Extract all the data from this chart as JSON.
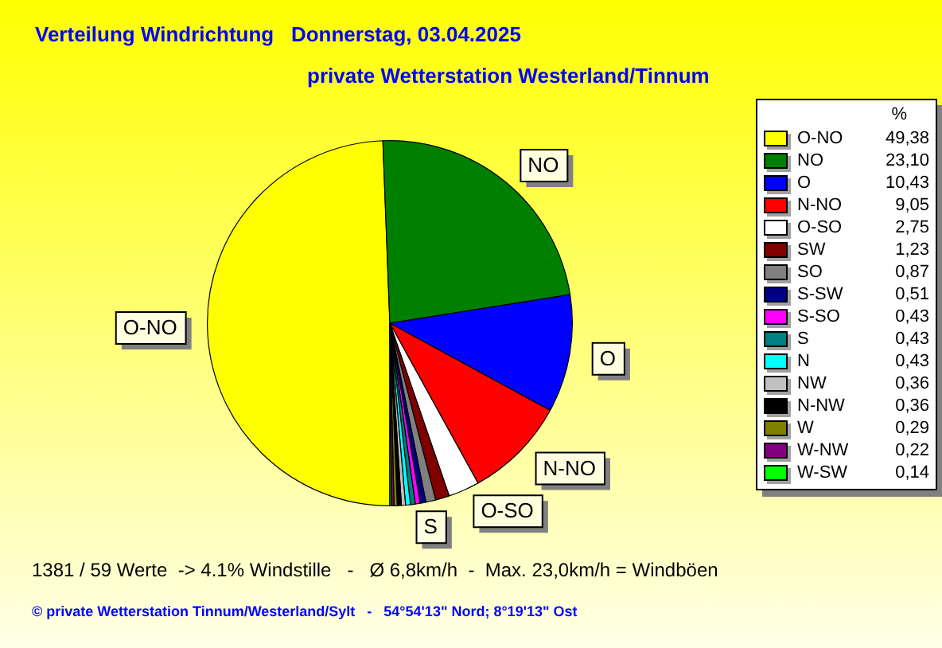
{
  "chart_data": {
    "type": "pie",
    "title": "Verteilung Windrichtung   Donnerstag, 03.04.2025",
    "subtitle": "private Wetterstation Westerland/Tinnum",
    "legend_title": "%",
    "legend": "right",
    "categories": [
      "O-NO",
      "NO",
      "O",
      "N-NO",
      "O-SO",
      "SW",
      "SO",
      "S-SW",
      "S-SO",
      "S",
      "N",
      "NW",
      "N-NW",
      "W",
      "W-NW",
      "W-SW"
    ],
    "values": [
      49.38,
      23.1,
      10.43,
      9.05,
      2.75,
      1.23,
      0.87,
      0.51,
      0.43,
      0.43,
      0.43,
      0.36,
      0.36,
      0.29,
      0.22,
      0.14
    ],
    "value_labels": [
      "49,38",
      "23,10",
      "10,43",
      "9,05",
      "2,75",
      "1,23",
      "0,87",
      "0,51",
      "0,43",
      "0,43",
      "0,43",
      "0,36",
      "0,36",
      "0,29",
      "0,22",
      "0,14"
    ],
    "colors": [
      "#ffff00",
      "#008000",
      "#0000ff",
      "#ff0000",
      "#ffffff",
      "#800000",
      "#808080",
      "#000080",
      "#ff00ff",
      "#008080",
      "#00ffff",
      "#c0c0c0",
      "#000000",
      "#808000",
      "#800080",
      "#00ff00"
    ],
    "annotations": [
      "1381 / 59 Werte  -> 4.1% Windstille   -   Ø 6,8km/h  -  Max. 23,0km/h = Windböen",
      "© private Wetterstation Tinnum/Westerland/Sylt   -   54°54'13\" Nord; 8°19'13\" Ost"
    ]
  }
}
